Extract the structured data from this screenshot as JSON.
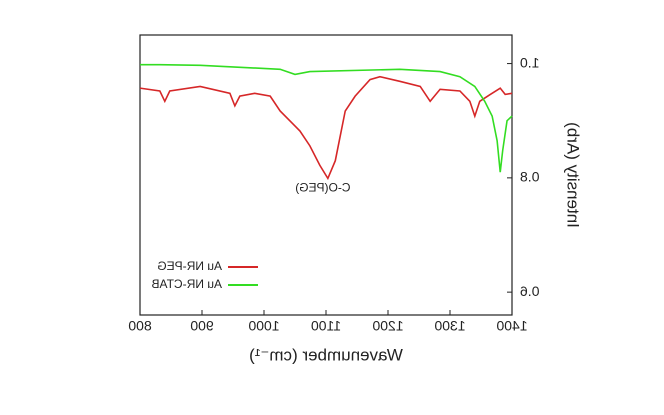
{
  "chart_data": {
    "type": "line",
    "x_label": "Wavenumber (cm⁻¹)",
    "y_label": "Intensity (Arb)",
    "annotation": "C-O(PEG)",
    "xlim": [
      1400,
      800
    ],
    "xticks": [
      1400,
      1300,
      1200,
      1100,
      1000,
      900,
      800
    ],
    "ylim": [
      0.56,
      1.05
    ],
    "yticks": [
      {
        "value": 0.6,
        "label": "0.6"
      },
      {
        "value": 0.8,
        "label": "0.8"
      },
      {
        "value": 1.0,
        "label": "1.0"
      }
    ],
    "legend": "lower right",
    "series": [
      {
        "name": "Au NR-PEG",
        "color": "#d62728",
        "x": [
          800,
          832,
          840,
          848,
          897,
          945,
          953,
          961,
          985,
          1010,
          1026,
          1058,
          1074,
          1090,
          1103,
          1115,
          1131,
          1147,
          1171,
          1187,
          1219,
          1252,
          1268,
          1284,
          1316,
          1332,
          1340,
          1348,
          1365,
          1381,
          1389,
          1400
        ],
        "values": [
          0.957,
          0.952,
          0.934,
          0.952,
          0.96,
          0.948,
          0.926,
          0.943,
          0.948,
          0.943,
          0.917,
          0.882,
          0.856,
          0.822,
          0.799,
          0.83,
          0.917,
          0.943,
          0.972,
          0.977,
          0.969,
          0.96,
          0.934,
          0.955,
          0.952,
          0.934,
          0.908,
          0.934,
          0.946,
          0.957,
          0.946,
          0.948
        ]
      },
      {
        "name": "Au NR-CTAB",
        "color": "#33dd22",
        "x": [
          800,
          832,
          897,
          1026,
          1050,
          1074,
          1219,
          1284,
          1316,
          1340,
          1356,
          1368,
          1376,
          1381,
          1385,
          1392,
          1400
        ],
        "values": [
          0.998,
          0.998,
          0.997,
          0.99,
          0.981,
          0.986,
          0.99,
          0.986,
          0.977,
          0.96,
          0.934,
          0.908,
          0.865,
          0.81,
          0.848,
          0.9,
          0.908
        ]
      }
    ]
  }
}
